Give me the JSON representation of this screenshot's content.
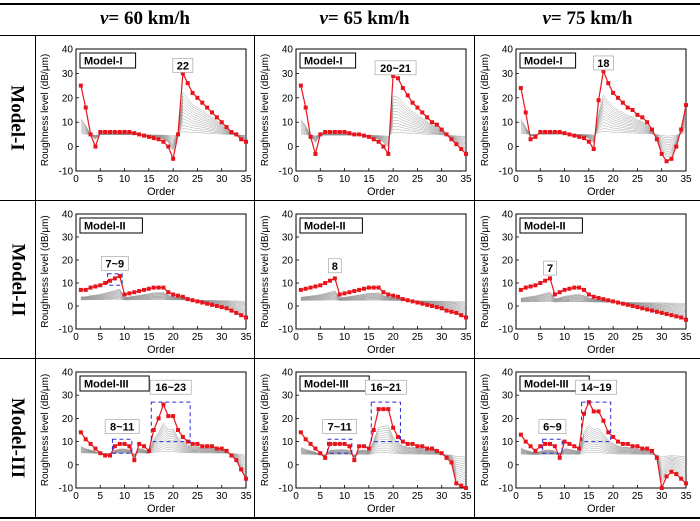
{
  "columns": [
    {
      "var": "v",
      "label": " = 60 km/h"
    },
    {
      "var": "v",
      "label": " = 65 km/h"
    },
    {
      "var": "v",
      "label": " = 75 km/h"
    }
  ],
  "rows": [
    {
      "label": "Model-I"
    },
    {
      "label": "Model-II"
    },
    {
      "label": "Model-III"
    }
  ],
  "colors": {
    "series": "#e8141c",
    "box": "#2b2bd6",
    "bundle": "#8a8a8a"
  },
  "chart_data": [
    {
      "type": "line",
      "row": 0,
      "col": 0,
      "model_label": "Model-I",
      "xlabel": "Order",
      "ylabel": "Roughness level (dB/μm)",
      "xlim": [
        0,
        35
      ],
      "ylim": [
        -10,
        40
      ],
      "xticks": [
        0,
        5,
        10,
        15,
        20,
        25,
        30,
        35
      ],
      "yticks": [
        -10,
        0,
        10,
        20,
        30,
        40
      ],
      "annotations": [
        {
          "text": "22",
          "x": 22,
          "y": 30
        }
      ],
      "boxes": [],
      "series": [
        {
          "x": [
            1,
            2,
            3,
            4,
            5,
            6,
            7,
            8,
            9,
            10,
            11,
            12,
            13,
            14,
            15,
            16,
            17,
            18,
            19,
            20,
            21,
            22,
            23,
            24,
            25,
            26,
            27,
            28,
            29,
            30,
            31,
            32,
            33,
            34,
            35
          ],
          "values": [
            25,
            16,
            5,
            0,
            6,
            6,
            6,
            6,
            6,
            6,
            6,
            5.5,
            5,
            4.5,
            4,
            3.5,
            3,
            2,
            0,
            -5,
            5,
            30,
            26,
            22,
            20,
            18,
            16,
            14,
            12,
            10,
            8,
            6,
            5,
            3,
            2
          ]
        }
      ]
    },
    {
      "type": "line",
      "row": 0,
      "col": 1,
      "model_label": "Model-I",
      "xlabel": "Order",
      "ylabel": "Roughness level (dB/μm)",
      "xlim": [
        0,
        35
      ],
      "ylim": [
        -10,
        40
      ],
      "xticks": [
        0,
        5,
        10,
        15,
        20,
        25,
        30,
        35
      ],
      "yticks": [
        -10,
        0,
        10,
        20,
        30,
        40
      ],
      "annotations": [
        {
          "text": "20~21",
          "x": 20.5,
          "y": 29
        }
      ],
      "boxes": [],
      "series": [
        {
          "x": [
            1,
            2,
            3,
            4,
            5,
            6,
            7,
            8,
            9,
            10,
            11,
            12,
            13,
            14,
            15,
            16,
            17,
            18,
            19,
            20,
            21,
            22,
            23,
            24,
            25,
            26,
            27,
            28,
            29,
            30,
            31,
            32,
            33,
            34,
            35
          ],
          "values": [
            25,
            16,
            4,
            -3,
            5,
            6,
            6,
            6,
            6,
            6,
            5.5,
            5,
            5,
            4.5,
            4,
            3,
            2,
            0,
            -3,
            29,
            28,
            24,
            21,
            18,
            16,
            14,
            12,
            10,
            9,
            7,
            5,
            3,
            1,
            -1,
            -3
          ]
        }
      ]
    },
    {
      "type": "line",
      "row": 0,
      "col": 2,
      "model_label": "Model-I",
      "xlabel": "Order",
      "ylabel": "Roughness level (dB/μm)",
      "xlim": [
        0,
        35
      ],
      "ylim": [
        -10,
        40
      ],
      "xticks": [
        0,
        5,
        10,
        15,
        20,
        25,
        30,
        35
      ],
      "yticks": [
        -10,
        0,
        10,
        20,
        30,
        40
      ],
      "annotations": [
        {
          "text": "18",
          "x": 18,
          "y": 31
        }
      ],
      "boxes": [],
      "series": [
        {
          "x": [
            1,
            2,
            3,
            4,
            5,
            6,
            7,
            8,
            9,
            10,
            11,
            12,
            13,
            14,
            15,
            16,
            17,
            18,
            19,
            20,
            21,
            22,
            23,
            24,
            25,
            26,
            27,
            28,
            29,
            30,
            31,
            32,
            33,
            34,
            35
          ],
          "values": [
            24,
            14,
            3,
            4,
            6,
            6,
            6,
            6,
            6,
            5.5,
            5,
            4.5,
            4,
            3.5,
            2,
            -1,
            19,
            31,
            26,
            22,
            20,
            18,
            16,
            15,
            13,
            12,
            10,
            7,
            3,
            -3,
            -6,
            -5,
            0,
            7,
            17
          ]
        }
      ]
    },
    {
      "type": "line",
      "row": 1,
      "col": 0,
      "model_label": "Model-II",
      "xlabel": "Order",
      "ylabel": "Roughness level (dB/μm)",
      "xlim": [
        0,
        35
      ],
      "ylim": [
        -10,
        40
      ],
      "xticks": [
        0,
        5,
        10,
        15,
        20,
        25,
        30,
        35
      ],
      "yticks": [
        -10,
        0,
        10,
        20,
        30,
        40
      ],
      "annotations": [
        {
          "text": "7~9",
          "x": 8,
          "y": 15
        }
      ],
      "boxes": [
        {
          "x": [
            6.5,
            9.5
          ],
          "y": [
            9,
            14
          ]
        }
      ],
      "series": [
        {
          "x": [
            1,
            2,
            3,
            4,
            5,
            6,
            7,
            8,
            9,
            10,
            11,
            12,
            13,
            14,
            15,
            16,
            17,
            18,
            19,
            20,
            21,
            22,
            23,
            24,
            25,
            26,
            27,
            28,
            29,
            30,
            31,
            32,
            33,
            34,
            35
          ],
          "values": [
            7,
            7,
            8,
            8.5,
            9,
            10,
            11,
            12,
            13,
            5,
            5.5,
            6,
            6.5,
            7,
            7.5,
            8,
            8,
            8,
            6,
            5,
            4.5,
            4,
            3,
            2.5,
            2,
            1.5,
            1,
            0.5,
            0,
            -0.5,
            -1,
            -2,
            -3,
            -4,
            -5
          ]
        }
      ]
    },
    {
      "type": "line",
      "row": 1,
      "col": 1,
      "model_label": "Model-II",
      "xlabel": "Order",
      "ylabel": "Roughness level (dB/μm)",
      "xlim": [
        0,
        35
      ],
      "ylim": [
        -10,
        40
      ],
      "xticks": [
        0,
        5,
        10,
        15,
        20,
        25,
        30,
        35
      ],
      "yticks": [
        -10,
        0,
        10,
        20,
        30,
        40
      ],
      "annotations": [
        {
          "text": "8",
          "x": 8,
          "y": 14
        }
      ],
      "boxes": [],
      "series": [
        {
          "x": [
            1,
            2,
            3,
            4,
            5,
            6,
            7,
            8,
            9,
            10,
            11,
            12,
            13,
            14,
            15,
            16,
            17,
            18,
            19,
            20,
            21,
            22,
            23,
            24,
            25,
            26,
            27,
            28,
            29,
            30,
            31,
            32,
            33,
            34,
            35
          ],
          "values": [
            7,
            7.5,
            8,
            8.5,
            9,
            10,
            11,
            12,
            5,
            5.5,
            6,
            6.5,
            7,
            7.5,
            8,
            8,
            8,
            6,
            5,
            4.5,
            4,
            3,
            2.5,
            2,
            1.5,
            1,
            0.5,
            0,
            -0.5,
            -1,
            -2,
            -2.5,
            -3,
            -4,
            -5
          ]
        }
      ]
    },
    {
      "type": "line",
      "row": 1,
      "col": 2,
      "model_label": "Model-II",
      "xlabel": "Order",
      "ylabel": "Roughness level (dB/μm)",
      "xlim": [
        0,
        35
      ],
      "ylim": [
        -10,
        40
      ],
      "xticks": [
        0,
        5,
        10,
        15,
        20,
        25,
        30,
        35
      ],
      "yticks": [
        -10,
        0,
        10,
        20,
        30,
        40
      ],
      "annotations": [
        {
          "text": "7",
          "x": 7,
          "y": 13
        }
      ],
      "boxes": [],
      "series": [
        {
          "x": [
            1,
            2,
            3,
            4,
            5,
            6,
            7,
            8,
            9,
            10,
            11,
            12,
            13,
            14,
            15,
            16,
            17,
            18,
            19,
            20,
            21,
            22,
            23,
            24,
            25,
            26,
            27,
            28,
            29,
            30,
            31,
            32,
            33,
            34,
            35
          ],
          "values": [
            7,
            8,
            8.5,
            9,
            10,
            11,
            12,
            5,
            6,
            7,
            7.5,
            8,
            8,
            7,
            5,
            4,
            3.5,
            3,
            2.5,
            2,
            1.5,
            1,
            0.5,
            0,
            -0.5,
            -1,
            -1.5,
            -2,
            -2.5,
            -3,
            -3.5,
            -4,
            -4.5,
            -5,
            -6
          ]
        }
      ]
    },
    {
      "type": "line",
      "row": 2,
      "col": 0,
      "model_label": "Model-III",
      "xlabel": "Order",
      "ylabel": "Roughness level (dB/μm)",
      "xlim": [
        0,
        35
      ],
      "ylim": [
        -10,
        40
      ],
      "xticks": [
        0,
        5,
        10,
        15,
        20,
        25,
        30,
        35
      ],
      "yticks": [
        -10,
        0,
        10,
        20,
        30,
        40
      ],
      "annotations": [
        {
          "text": "8~11",
          "x": 9.5,
          "y": 13
        },
        {
          "text": "16~23",
          "x": 19.5,
          "y": 30
        }
      ],
      "boxes": [
        {
          "x": [
            7.5,
            11.5
          ],
          "y": [
            5,
            11
          ]
        },
        {
          "x": [
            15.5,
            23.5
          ],
          "y": [
            10,
            27
          ]
        }
      ],
      "series": [
        {
          "x": [
            1,
            2,
            3,
            4,
            5,
            6,
            7,
            8,
            9,
            10,
            11,
            12,
            13,
            14,
            15,
            16,
            17,
            18,
            19,
            20,
            21,
            22,
            23,
            24,
            25,
            26,
            27,
            28,
            29,
            30,
            31,
            32,
            33,
            34,
            35
          ],
          "values": [
            14,
            11,
            9,
            7,
            5,
            4,
            4,
            8,
            9,
            9,
            8,
            2,
            9,
            8,
            6,
            15,
            20,
            26,
            21,
            21,
            15,
            12,
            10,
            9,
            9,
            8,
            8,
            8,
            7,
            7,
            6,
            4,
            2,
            -2,
            -6
          ]
        }
      ]
    },
    {
      "type": "line",
      "row": 2,
      "col": 1,
      "model_label": "Model-III",
      "xlabel": "Order",
      "ylabel": "Roughness level (dB/μm)",
      "xlim": [
        0,
        35
      ],
      "ylim": [
        -10,
        40
      ],
      "xticks": [
        0,
        5,
        10,
        15,
        20,
        25,
        30,
        35
      ],
      "yticks": [
        -10,
        0,
        10,
        20,
        30,
        40
      ],
      "annotations": [
        {
          "text": "7~11",
          "x": 9,
          "y": 13
        },
        {
          "text": "16~21",
          "x": 18.5,
          "y": 30
        }
      ],
      "boxes": [
        {
          "x": [
            6.5,
            11.5
          ],
          "y": [
            5,
            11
          ]
        },
        {
          "x": [
            15.5,
            21.5
          ],
          "y": [
            10,
            27
          ]
        }
      ],
      "series": [
        {
          "x": [
            1,
            2,
            3,
            4,
            5,
            6,
            7,
            8,
            9,
            10,
            11,
            12,
            13,
            14,
            15,
            16,
            17,
            18,
            19,
            20,
            21,
            22,
            23,
            24,
            25,
            26,
            27,
            28,
            29,
            30,
            31,
            32,
            33,
            34,
            35
          ],
          "values": [
            14,
            11,
            9,
            7,
            5,
            3,
            9,
            9,
            9,
            9,
            8,
            2,
            8,
            8,
            7,
            15,
            24,
            24,
            24,
            16,
            12,
            10,
            9,
            9,
            8,
            8,
            7,
            7,
            6,
            5,
            3,
            1,
            -8,
            -9,
            -10
          ]
        }
      ]
    },
    {
      "type": "line",
      "row": 2,
      "col": 2,
      "model_label": "Model-III",
      "xlabel": "Order",
      "ylabel": "Roughness level (dB/μm)",
      "xlim": [
        0,
        35
      ],
      "ylim": [
        -10,
        40
      ],
      "xticks": [
        0,
        5,
        10,
        15,
        20,
        25,
        30,
        35
      ],
      "yticks": [
        -10,
        0,
        10,
        20,
        30,
        40
      ],
      "annotations": [
        {
          "text": "6~9",
          "x": 7.5,
          "y": 13
        },
        {
          "text": "14~19",
          "x": 16.5,
          "y": 30
        }
      ],
      "boxes": [
        {
          "x": [
            5.5,
            9.5
          ],
          "y": [
            5,
            11
          ]
        },
        {
          "x": [
            13.5,
            19.5
          ],
          "y": [
            10,
            27
          ]
        }
      ],
      "series": [
        {
          "x": [
            1,
            2,
            3,
            4,
            5,
            6,
            7,
            8,
            9,
            10,
            11,
            12,
            13,
            14,
            15,
            16,
            17,
            18,
            19,
            20,
            21,
            22,
            23,
            24,
            25,
            26,
            27,
            28,
            29,
            30,
            31,
            32,
            33,
            34,
            35
          ],
          "values": [
            13,
            10,
            8,
            6,
            8,
            9,
            9,
            8,
            3,
            10,
            9,
            8,
            7,
            22,
            27,
            23,
            23,
            19,
            14,
            12,
            10,
            9,
            9,
            8,
            8,
            7,
            7,
            6,
            3,
            -10,
            -5,
            -3,
            -4,
            -6,
            -8
          ]
        }
      ]
    }
  ]
}
